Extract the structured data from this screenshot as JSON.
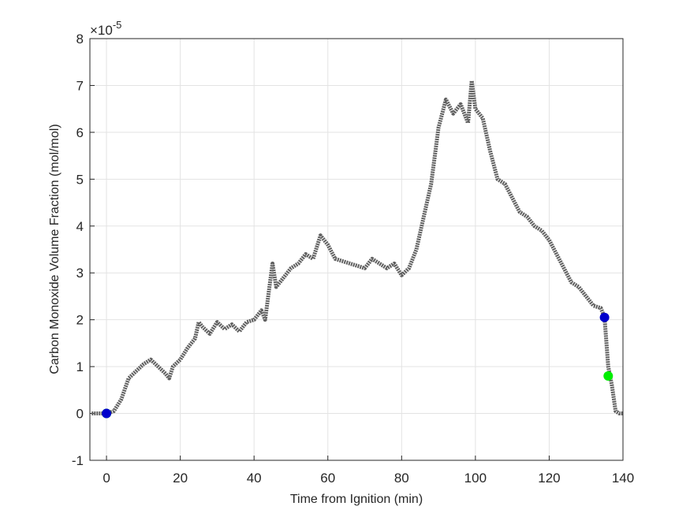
{
  "chart_data": {
    "type": "line",
    "xlabel": "Time from Ignition (min)",
    "ylabel": "Carbon Monoxide Volume Fraction (mol/mol)",
    "y_exponent": {
      "base": "×10",
      "power": "-5"
    },
    "xlim": [
      -4.5,
      140
    ],
    "ylim": [
      -1,
      8
    ],
    "xticks": [
      0,
      20,
      40,
      60,
      80,
      100,
      120,
      140
    ],
    "yticks": [
      -1,
      0,
      1,
      2,
      3,
      4,
      5,
      6,
      7,
      8
    ],
    "grid": true,
    "series": [
      {
        "style": "line",
        "color": "#606060",
        "x": [
          -4,
          -2,
          0,
          2,
          4,
          6,
          8,
          10,
          12,
          14,
          16,
          17,
          18,
          20,
          22,
          24,
          25,
          26,
          28,
          30,
          32,
          34,
          36,
          38,
          40,
          42,
          43,
          44,
          45,
          46,
          48,
          50,
          52,
          54,
          56,
          58,
          60,
          62,
          64,
          66,
          68,
          70,
          72,
          74,
          76,
          78,
          80,
          82,
          84,
          86,
          88,
          90,
          92,
          94,
          96,
          98,
          99,
          100,
          102,
          104,
          106,
          108,
          110,
          112,
          114,
          116,
          118,
          120,
          122,
          124,
          126,
          128,
          130,
          132,
          134,
          135,
          136,
          137,
          138,
          139,
          140
        ],
        "values": [
          0,
          0,
          0,
          0.05,
          0.3,
          0.75,
          0.9,
          1.05,
          1.15,
          1.0,
          0.85,
          0.75,
          1.0,
          1.15,
          1.4,
          1.6,
          1.95,
          1.85,
          1.7,
          1.95,
          1.8,
          1.9,
          1.75,
          1.95,
          2.0,
          2.2,
          2.0,
          2.6,
          3.2,
          2.7,
          2.9,
          3.1,
          3.2,
          3.4,
          3.3,
          3.8,
          3.6,
          3.3,
          3.25,
          3.2,
          3.15,
          3.1,
          3.3,
          3.2,
          3.1,
          3.2,
          2.95,
          3.1,
          3.5,
          4.2,
          4.9,
          6.1,
          6.7,
          6.4,
          6.6,
          6.2,
          7.1,
          6.5,
          6.3,
          5.6,
          5.0,
          4.9,
          4.6,
          4.3,
          4.2,
          4.0,
          3.9,
          3.7,
          3.4,
          3.1,
          2.8,
          2.7,
          2.5,
          2.3,
          2.25,
          2.05,
          1.0,
          0.6,
          0.05,
          0,
          0
        ]
      },
      {
        "style": "marker",
        "color": "#00ee00",
        "x": [
          0,
          136
        ],
        "values": [
          0,
          0.8
        ]
      },
      {
        "style": "marker",
        "color": "#0000cc",
        "x": [
          0,
          135
        ],
        "values": [
          0,
          2.05
        ]
      }
    ]
  }
}
